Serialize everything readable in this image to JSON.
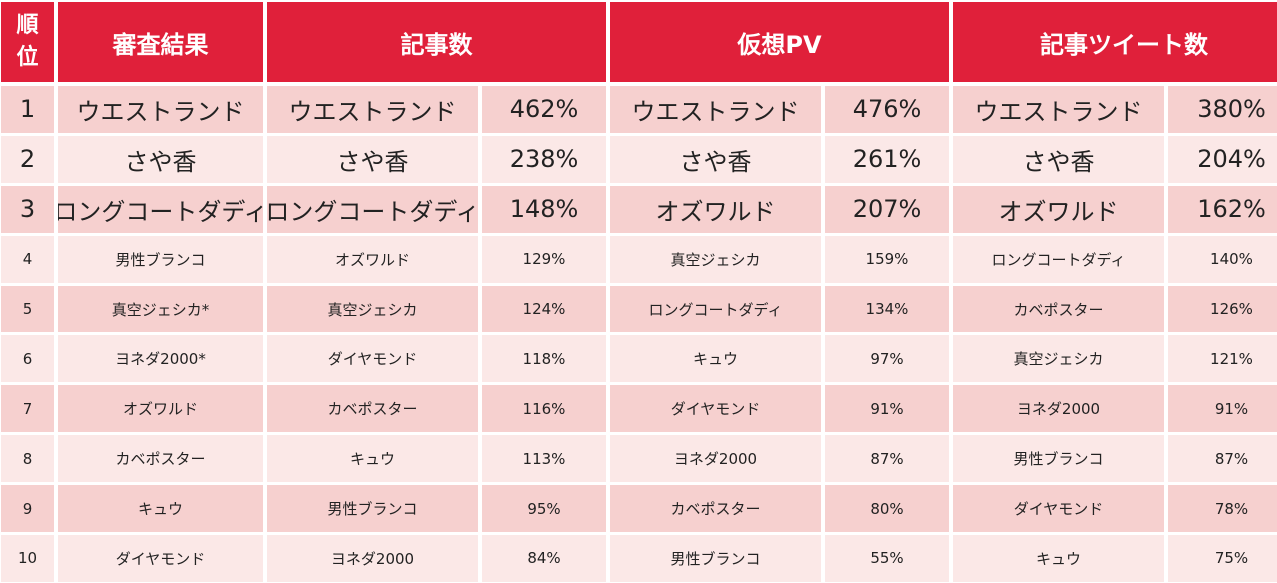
{
  "header": {
    "rank_top": "順",
    "rank_bottom": "位",
    "result": "審査結果",
    "articles": "記事数",
    "pv": "仮想PV",
    "tweets": "記事ツイート数"
  },
  "rows": [
    {
      "rank": "1",
      "result": "ウエストランド",
      "art_name": "ウエストランド",
      "art_pct": "462%",
      "pv_name": "ウエストランド",
      "pv_pct": "476%",
      "tw_name": "ウエストランド",
      "tw_pct": "380%"
    },
    {
      "rank": "2",
      "result": "さや香",
      "art_name": "さや香",
      "art_pct": "238%",
      "pv_name": "さや香",
      "pv_pct": "261%",
      "tw_name": "さや香",
      "tw_pct": "204%"
    },
    {
      "rank": "3",
      "result": "ロングコートダディ",
      "art_name": "ロングコートダディ",
      "art_pct": "148%",
      "pv_name": "オズワルド",
      "pv_pct": "207%",
      "tw_name": "オズワルド",
      "tw_pct": "162%"
    },
    {
      "rank": "4",
      "result": "男性ブランコ",
      "art_name": "オズワルド",
      "art_pct": "129%",
      "pv_name": "真空ジェシカ",
      "pv_pct": "159%",
      "tw_name": "ロングコートダディ",
      "tw_pct": "140%"
    },
    {
      "rank": "5",
      "result": "真空ジェシカ*",
      "art_name": "真空ジェシカ",
      "art_pct": "124%",
      "pv_name": "ロングコートダディ",
      "pv_pct": "134%",
      "tw_name": "カベポスター",
      "tw_pct": "126%"
    },
    {
      "rank": "6",
      "result": "ヨネダ2000*",
      "art_name": "ダイヤモンド",
      "art_pct": "118%",
      "pv_name": "キュウ",
      "pv_pct": "97%",
      "tw_name": "真空ジェシカ",
      "tw_pct": "121%"
    },
    {
      "rank": "7",
      "result": "オズワルド",
      "art_name": "カベポスター",
      "art_pct": "116%",
      "pv_name": "ダイヤモンド",
      "pv_pct": "91%",
      "tw_name": "ヨネダ2000",
      "tw_pct": "91%"
    },
    {
      "rank": "8",
      "result": "カベポスター",
      "art_name": "キュウ",
      "art_pct": "113%",
      "pv_name": "ヨネダ2000",
      "pv_pct": "87%",
      "tw_name": "男性ブランコ",
      "tw_pct": "87%"
    },
    {
      "rank": "9",
      "result": "キュウ",
      "art_name": "男性ブランコ",
      "art_pct": "95%",
      "pv_name": "カベポスター",
      "pv_pct": "80%",
      "tw_name": "ダイヤモンド",
      "tw_pct": "78%"
    },
    {
      "rank": "10",
      "result": "ダイヤモンド",
      "art_name": "ヨネダ2000",
      "art_pct": "84%",
      "pv_name": "男性ブランコ",
      "pv_pct": "55%",
      "tw_name": "キュウ",
      "tw_pct": "75%"
    }
  ],
  "colors": {
    "header_bg": "#e0203a",
    "row_odd": "#f6d0cf",
    "row_even": "#fbe8e7"
  }
}
